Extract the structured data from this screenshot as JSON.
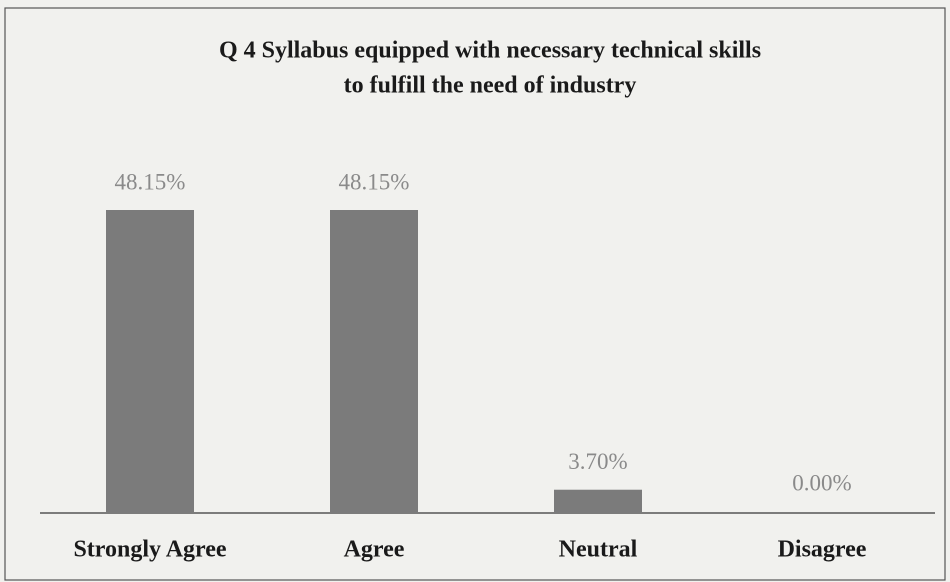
{
  "chart_data": {
    "type": "bar",
    "title": [
      "Q 4 Syllabus equipped with necessary technical skills",
      "to fulfill the need of industry"
    ],
    "categories": [
      "Strongly Agree",
      "Agree",
      "Neutral",
      "Disagree"
    ],
    "values": [
      48.15,
      48.15,
      3.7,
      0.0
    ],
    "value_labels": [
      "48.15%",
      "48.15%",
      "3.70%",
      "0.00%"
    ],
    "color": "#7b7b7b"
  }
}
